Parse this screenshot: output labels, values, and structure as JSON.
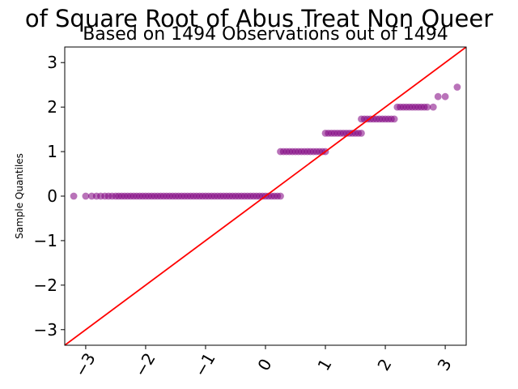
{
  "chart_data": {
    "type": "scatter",
    "title": "of Square Root of Abus Treat Non Queer",
    "subtitle": "Based on 1494 Observations out of 1494",
    "xlabel": "",
    "ylabel": "Sample Quantiles",
    "xlim": [
      -3.35,
      3.35
    ],
    "ylim": [
      -3.35,
      3.35
    ],
    "xticks": [
      -3,
      -2,
      -1,
      0,
      1,
      2,
      3
    ],
    "yticks": [
      -3,
      -2,
      -1,
      0,
      1,
      2,
      3
    ],
    "xtick_labels": [
      "−3",
      "−2",
      "−1",
      "0",
      "1",
      "2",
      "3"
    ],
    "ytick_labels": [
      "−3",
      "−2",
      "−1",
      "0",
      "1",
      "2",
      "3"
    ],
    "grid": false,
    "legend": "none",
    "colors": {
      "points": "#800080",
      "reference_line": "#ff0000"
    },
    "reference_line": {
      "slope": 1,
      "intercept": 0
    },
    "series": [
      {
        "points": [
          [
            -3.2,
            0
          ],
          [
            -3.0,
            0
          ],
          [
            -2.9,
            0
          ],
          [
            -2.82,
            0
          ],
          [
            -2.75,
            0
          ],
          [
            -2.68,
            0
          ],
          [
            -2.62,
            0
          ],
          [
            -2.56,
            0
          ],
          [
            -2.5,
            0
          ],
          [
            -2.45,
            0
          ],
          [
            -2.4,
            0
          ],
          [
            -2.35,
            0
          ],
          [
            -2.3,
            0
          ],
          [
            -2.25,
            0
          ],
          [
            -2.2,
            0
          ],
          [
            -2.15,
            0
          ],
          [
            -2.1,
            0
          ],
          [
            -2.05,
            0
          ],
          [
            -2.0,
            0
          ],
          [
            -1.95,
            0
          ],
          [
            -1.9,
            0
          ],
          [
            -1.85,
            0
          ],
          [
            -1.8,
            0
          ],
          [
            -1.75,
            0
          ],
          [
            -1.7,
            0
          ],
          [
            -1.65,
            0
          ],
          [
            -1.6,
            0
          ],
          [
            -1.55,
            0
          ],
          [
            -1.5,
            0
          ],
          [
            -1.45,
            0
          ],
          [
            -1.4,
            0
          ],
          [
            -1.35,
            0
          ],
          [
            -1.3,
            0
          ],
          [
            -1.25,
            0
          ],
          [
            -1.2,
            0
          ],
          [
            -1.15,
            0
          ],
          [
            -1.1,
            0
          ],
          [
            -1.05,
            0
          ],
          [
            -1.0,
            0
          ],
          [
            -0.95,
            0
          ],
          [
            -0.9,
            0
          ],
          [
            -0.85,
            0
          ],
          [
            -0.8,
            0
          ],
          [
            -0.75,
            0
          ],
          [
            -0.7,
            0
          ],
          [
            -0.65,
            0
          ],
          [
            -0.6,
            0
          ],
          [
            -0.55,
            0
          ],
          [
            -0.5,
            0
          ],
          [
            -0.45,
            0
          ],
          [
            -0.4,
            0
          ],
          [
            -0.35,
            0
          ],
          [
            -0.3,
            0
          ],
          [
            -0.25,
            0
          ],
          [
            -0.2,
            0
          ],
          [
            -0.15,
            0
          ],
          [
            -0.1,
            0
          ],
          [
            -0.05,
            0
          ],
          [
            0.0,
            0
          ],
          [
            0.05,
            0
          ],
          [
            0.1,
            0
          ],
          [
            0.15,
            0
          ],
          [
            0.2,
            0
          ],
          [
            0.25,
            0
          ],
          [
            0.25,
            1
          ],
          [
            0.3,
            1
          ],
          [
            0.35,
            1
          ],
          [
            0.4,
            1
          ],
          [
            0.45,
            1
          ],
          [
            0.5,
            1
          ],
          [
            0.55,
            1
          ],
          [
            0.6,
            1
          ],
          [
            0.65,
            1
          ],
          [
            0.7,
            1
          ],
          [
            0.75,
            1
          ],
          [
            0.8,
            1
          ],
          [
            0.85,
            1
          ],
          [
            0.9,
            1
          ],
          [
            0.95,
            1
          ],
          [
            1.0,
            1
          ],
          [
            1.0,
            1.414
          ],
          [
            1.05,
            1.414
          ],
          [
            1.1,
            1.414
          ],
          [
            1.15,
            1.414
          ],
          [
            1.2,
            1.414
          ],
          [
            1.25,
            1.414
          ],
          [
            1.3,
            1.414
          ],
          [
            1.35,
            1.414
          ],
          [
            1.4,
            1.414
          ],
          [
            1.45,
            1.414
          ],
          [
            1.5,
            1.414
          ],
          [
            1.55,
            1.414
          ],
          [
            1.6,
            1.414
          ],
          [
            1.6,
            1.732
          ],
          [
            1.65,
            1.732
          ],
          [
            1.7,
            1.732
          ],
          [
            1.75,
            1.732
          ],
          [
            1.8,
            1.732
          ],
          [
            1.85,
            1.732
          ],
          [
            1.9,
            1.732
          ],
          [
            1.95,
            1.732
          ],
          [
            2.0,
            1.732
          ],
          [
            2.05,
            1.732
          ],
          [
            2.1,
            1.732
          ],
          [
            2.15,
            1.732
          ],
          [
            2.2,
            2
          ],
          [
            2.25,
            2
          ],
          [
            2.3,
            2
          ],
          [
            2.35,
            2
          ],
          [
            2.4,
            2
          ],
          [
            2.45,
            2
          ],
          [
            2.5,
            2
          ],
          [
            2.55,
            2
          ],
          [
            2.6,
            2
          ],
          [
            2.65,
            2
          ],
          [
            2.7,
            2
          ],
          [
            2.8,
            2
          ],
          [
            2.88,
            2.236
          ],
          [
            3.0,
            2.236
          ],
          [
            3.2,
            2.449
          ]
        ]
      }
    ]
  }
}
